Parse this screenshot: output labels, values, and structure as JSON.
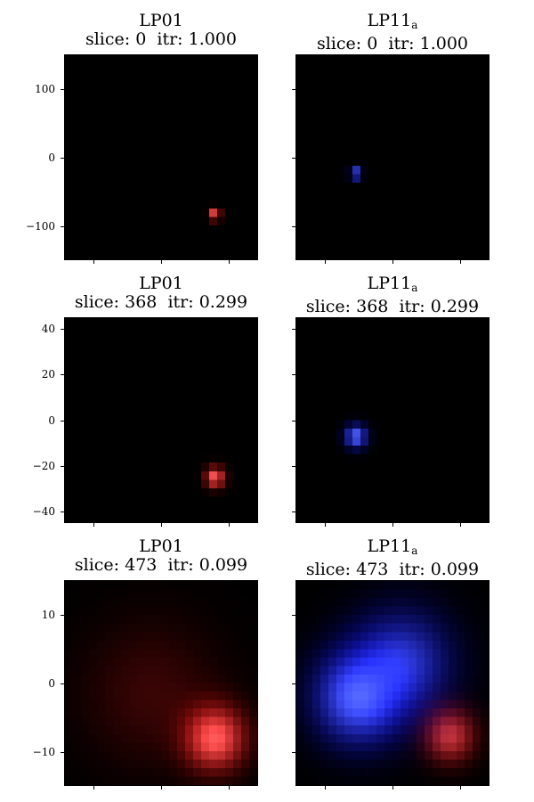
{
  "chart_data": [
    {
      "type": "heatmap",
      "title_mode": "LP01",
      "title_sub": "",
      "slice_label": "slice: 0",
      "itr_label": "itr: 1.000",
      "color": "red",
      "ylim": [
        -150,
        150
      ],
      "yticks": [
        "100",
        "0",
        "−100"
      ],
      "ytick_values": [
        100,
        0,
        -100
      ],
      "blobs": [
        {
          "cx": 0.78,
          "cy": 0.78,
          "sigma": 0.012,
          "peak": 1.0
        }
      ]
    },
    {
      "type": "heatmap",
      "title_mode": "LP11",
      "title_sub": "a",
      "slice_label": "slice: 0",
      "itr_label": "itr: 1.000",
      "color": "blue",
      "ylim": [
        -150,
        150
      ],
      "yticks": [],
      "ytick_values": [],
      "blobs": [
        {
          "cx": 0.31,
          "cy": 0.58,
          "sigma": 0.012,
          "peak": 1.0
        }
      ]
    },
    {
      "type": "heatmap",
      "title_mode": "LP01",
      "title_sub": "",
      "slice_label": "slice: 368",
      "itr_label": "itr: 0.299",
      "color": "red",
      "ylim": [
        -45,
        45
      ],
      "yticks": [
        "40",
        "20",
        "0",
        "−20",
        "−40"
      ],
      "ytick_values": [
        40,
        20,
        0,
        -20,
        -40
      ],
      "blobs": [
        {
          "cx": 0.78,
          "cy": 0.78,
          "sigma": 0.035,
          "peak": 1.0
        }
      ]
    },
    {
      "type": "heatmap",
      "title_mode": "LP11",
      "title_sub": "a",
      "slice_label": "slice: 368",
      "itr_label": "itr: 0.299",
      "color": "blue",
      "ylim": [
        -45,
        45
      ],
      "yticks": [],
      "ytick_values": [],
      "blobs": [
        {
          "cx": 0.31,
          "cy": 0.58,
          "sigma": 0.04,
          "peak": 1.0
        }
      ]
    },
    {
      "type": "heatmap",
      "title_mode": "LP01",
      "title_sub": "",
      "slice_label": "slice: 473",
      "itr_label": "itr: 0.099",
      "color": "red",
      "ylim": [
        -15,
        15
      ],
      "yticks": [
        "10",
        "0",
        "−10"
      ],
      "ytick_values": [
        10,
        0,
        -10
      ],
      "blobs": [
        {
          "cx": 0.78,
          "cy": 0.77,
          "sigma": 0.11,
          "peak": 1.0
        },
        {
          "cx": 0.45,
          "cy": 0.55,
          "sigma": 0.25,
          "peak": 0.22
        }
      ]
    },
    {
      "type": "heatmap",
      "title_mode": "LP11",
      "title_sub": "a",
      "slice_label": "slice: 473",
      "itr_label": "itr: 0.099",
      "color": "blue",
      "ylim": [
        -15,
        15
      ],
      "yticks": [],
      "ytick_values": [],
      "blobs": [
        {
          "cx": 0.32,
          "cy": 0.57,
          "sigma": 0.16,
          "peak": 1.0
        },
        {
          "cx": 0.55,
          "cy": 0.4,
          "sigma": 0.18,
          "peak": 0.75
        },
        {
          "cx": 0.8,
          "cy": 0.76,
          "sigma": 0.09,
          "peak": 0.75,
          "color": "red"
        }
      ]
    }
  ]
}
